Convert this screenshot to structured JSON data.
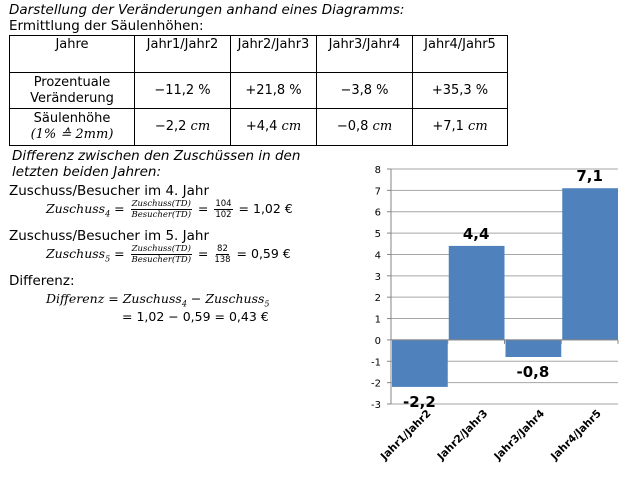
{
  "heading": "Darstellung der Veränderungen anhand eines Diagramms:",
  "subheading": "Ermittlung der Säulenhöhen:",
  "table": {
    "header": [
      "Jahre",
      "Jahr1/Jahr2",
      "Jahr2/Jahr3",
      "Jahr3/Jahr4",
      "Jahr4/Jahr5"
    ],
    "rows": [
      {
        "label": "Prozentuale Veränderung",
        "values": [
          "−11,2 %",
          "+21,8 %",
          "−3,8 %",
          "+35,3 %"
        ]
      },
      {
        "label": "Säulenhöhe",
        "sublabel": "(1% ≙ 2mm)",
        "values": [
          "−2,2",
          "+4,4",
          "−0,8",
          "+7,1"
        ],
        "unit": "cm"
      }
    ]
  },
  "difference": {
    "title": "Differenz zwischen den Zuschüssen in den letzten beiden Jahren:",
    "year4_label": "Zuschuss/Besucher im 4. Jahr",
    "year4_lhs": "Zuschuss",
    "year4_sub": "4",
    "frac_num": "Zuschuss(TD)",
    "frac_den": "Besucher(TD)",
    "year4_num": "104",
    "year4_den": "102",
    "year4_result": "= 1,02 €",
    "year5_label": "Zuschuss/Besucher im 5. Jahr",
    "year5_sub": "5",
    "year5_num": "82",
    "year5_den": "138",
    "year5_result": "= 0,59 €",
    "diff_label": "Differenz:",
    "diff_lhs": "Differenz",
    "diff_line2": "= 1,02 − 0,59 = 0,43 €"
  },
  "chart_data": {
    "type": "bar",
    "categories": [
      "Jahr1/Jahr2",
      "Jahr2/Jahr3",
      "Jahr3/Jahr4",
      "Jahr4/Jahr5"
    ],
    "values": [
      -2.2,
      4.4,
      -0.8,
      7.1
    ],
    "data_labels": [
      "-2,2",
      "4,4",
      "-0,8",
      "7,1"
    ],
    "ylim": [
      -3,
      8
    ],
    "yticks": [
      -3,
      -2,
      -1,
      0,
      1,
      2,
      3,
      4,
      5,
      6,
      7,
      8
    ],
    "grid": true,
    "bar_color": "#4F81BD",
    "grid_color": "#A6A6A6"
  }
}
